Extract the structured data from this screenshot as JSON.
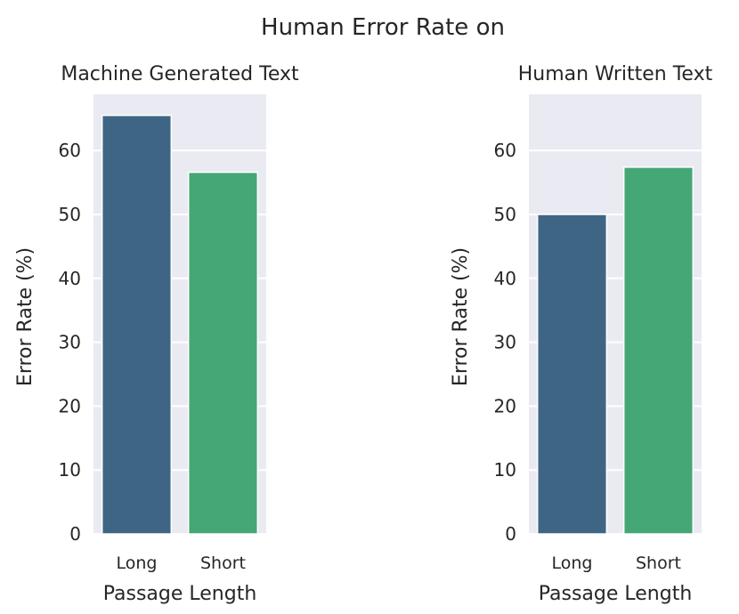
{
  "figure": {
    "title": "Human Error Rate on"
  },
  "chart_data": [
    {
      "type": "bar",
      "title": "Machine Generated Text",
      "xlabel": "Passage Length",
      "ylabel": "Error Rate (%)",
      "categories": [
        "Long",
        "Short"
      ],
      "values": [
        65.5,
        56.6
      ],
      "ylim": [
        0,
        68.8
      ],
      "yticks": [
        0,
        10,
        20,
        30,
        40,
        50,
        60
      ],
      "grid": true,
      "colors": [
        "#3e6684",
        "#45a776"
      ],
      "background": "#eaeaf2"
    },
    {
      "type": "bar",
      "title": "Human Written Text",
      "xlabel": "Passage Length",
      "ylabel": "Error Rate (%)",
      "categories": [
        "Long",
        "Short"
      ],
      "values": [
        50.0,
        57.4
      ],
      "ylim": [
        0,
        68.8
      ],
      "yticks": [
        0,
        10,
        20,
        30,
        40,
        50,
        60
      ],
      "grid": true,
      "colors": [
        "#3e6684",
        "#45a776"
      ],
      "background": "#eaeaf2"
    }
  ]
}
